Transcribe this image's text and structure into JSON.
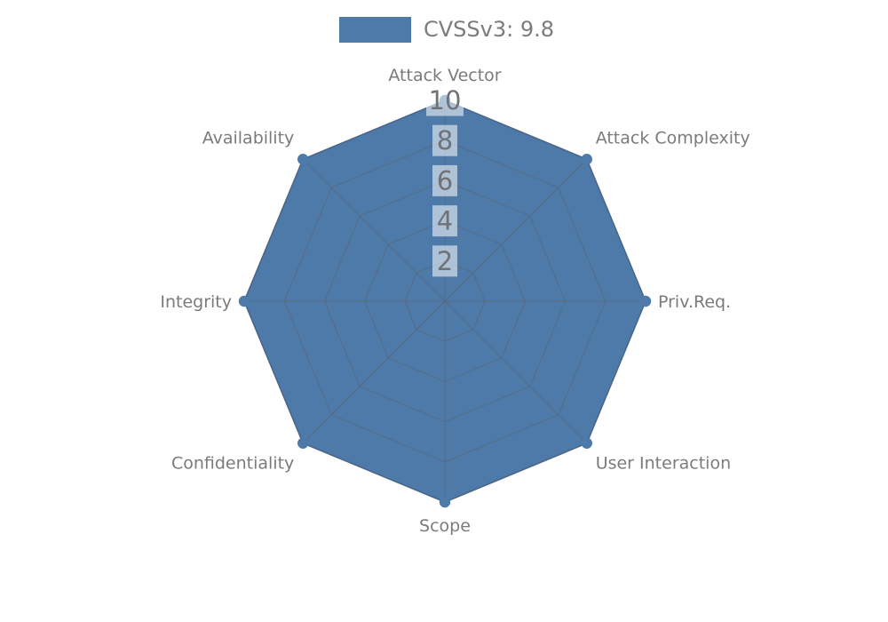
{
  "legend": {
    "label": "CVSSv3: 9.8",
    "swatch_color": "#4d7aa8"
  },
  "chart_data": {
    "type": "radar",
    "title": "CVSSv3: 9.8",
    "categories": [
      "Attack Vector",
      "Attack Complexity",
      "Priv.Req.",
      "User Interaction",
      "Scope",
      "Confidentiality",
      "Integrity",
      "Availability"
    ],
    "series": [
      {
        "name": "CVSSv3: 9.8",
        "color": "#4d7aa8",
        "values": [
          10,
          10,
          10,
          10,
          10,
          10,
          10,
          10
        ]
      }
    ],
    "radial_ticks": [
      2,
      4,
      6,
      8,
      10
    ],
    "radial_range": [
      0,
      10
    ],
    "grid": true,
    "grid_shape": "polygon",
    "legend_position": "top-center"
  },
  "colors": {
    "background": "#ffffff",
    "series_fill": "#4d7aa8",
    "series_edge": "#41699a",
    "grid_line": "rgba(90,100,112,0.65)",
    "axis_label_text": "#797b7e",
    "tick_text": "#6f7378",
    "tick_box": "rgba(255,255,255,0.55)"
  }
}
